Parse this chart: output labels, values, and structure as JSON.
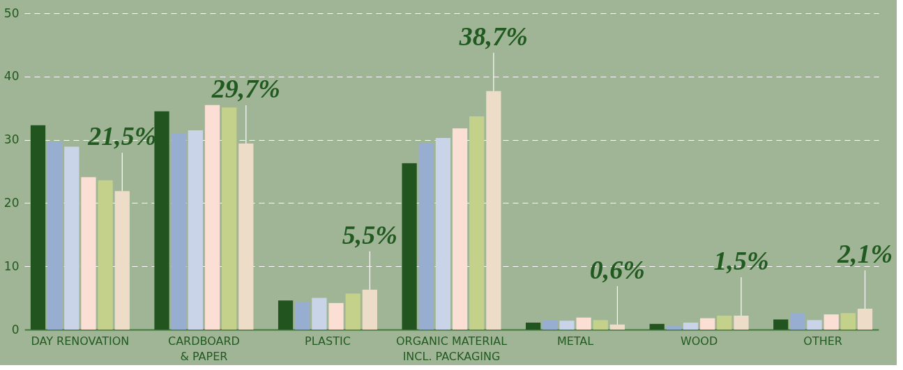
{
  "chart_data": {
    "type": "bar",
    "categories": [
      "DAY RENOVATION",
      "CARDBOARD\n& PAPER",
      "PLASTIC",
      "ORGANIC MATERIAL\nINCL. PACKAGING",
      "METAL",
      "WOOD",
      "OTHER"
    ],
    "series": [
      {
        "color": "#21541f",
        "values": [
          32.3,
          34.5,
          4.6,
          26.3,
          1.1,
          0.9,
          1.6
        ]
      },
      {
        "color": "#98aed0",
        "values": [
          29.7,
          31.0,
          4.4,
          29.4,
          1.5,
          0.6,
          2.6
        ]
      },
      {
        "color": "#c9d4e8",
        "values": [
          28.9,
          31.5,
          5.0,
          30.3,
          1.4,
          1.1,
          1.5
        ]
      },
      {
        "color": "#fbdfd4",
        "values": [
          24.1,
          35.5,
          4.2,
          31.8,
          1.9,
          1.8,
          2.4
        ]
      },
      {
        "color": "#c4d18b",
        "values": [
          23.6,
          35.1,
          5.7,
          33.7,
          1.5,
          2.2,
          2.6
        ]
      },
      {
        "color": "#ecdcc8",
        "values": [
          21.9,
          29.4,
          6.3,
          37.7,
          0.8,
          2.2,
          3.3
        ]
      }
    ],
    "ylim": [
      0,
      50
    ],
    "yticks": [
      0,
      10,
      20,
      30,
      40,
      50
    ],
    "grid": "y",
    "legend": false,
    "annotations": [
      {
        "text": "21,5%",
        "y": 21.9
      },
      {
        "text": "29,7%",
        "y": 29.4
      },
      {
        "text": "5,5%",
        "y": 6.3
      },
      {
        "text": "38,7%",
        "y": 37.7
      },
      {
        "text": "0,6%",
        "y": 0.8
      },
      {
        "text": "1,5%",
        "y": 2.2
      },
      {
        "text": "2,1%",
        "y": 3.3
      }
    ]
  }
}
